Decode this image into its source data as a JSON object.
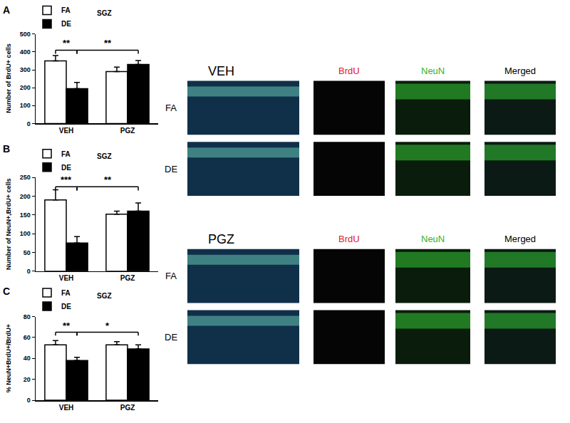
{
  "chart_data": [
    {
      "type": "bar",
      "panel_label": "A",
      "title": "SGZ",
      "y_label": "Number of BrdU+ cells",
      "categories": [
        "VEH",
        "PGZ"
      ],
      "series": [
        {
          "name": "FA",
          "color": "#ffffff",
          "values": [
            350,
            290
          ],
          "errors": [
            30,
            25
          ]
        },
        {
          "name": "DE",
          "color": "#000000",
          "values": [
            195,
            330
          ],
          "errors": [
            35,
            22
          ]
        }
      ],
      "ylim": [
        0,
        500
      ],
      "yticks": [
        0,
        100,
        200,
        300,
        400,
        500
      ],
      "grid": false,
      "legend": "upper left",
      "significance": [
        {
          "from": [
            "VEH",
            "FA"
          ],
          "to": [
            "VEH",
            "DE"
          ],
          "y": 410,
          "label": "**"
        },
        {
          "from": [
            "VEH",
            "DE"
          ],
          "to": [
            "PGZ",
            "DE"
          ],
          "y": 410,
          "label": "**"
        }
      ]
    },
    {
      "type": "bar",
      "panel_label": "B",
      "title": "SGZ",
      "y_label": "Number of NeuN+,BrdU+ cells",
      "categories": [
        "VEH",
        "PGZ"
      ],
      "series": [
        {
          "name": "FA",
          "color": "#ffffff",
          "values": [
            190,
            152
          ],
          "errors": [
            27,
            8
          ]
        },
        {
          "name": "DE",
          "color": "#000000",
          "values": [
            75,
            160
          ],
          "errors": [
            17,
            22
          ]
        }
      ],
      "ylim": [
        0,
        250
      ],
      "yticks": [
        0,
        50,
        100,
        150,
        200,
        250
      ],
      "grid": false,
      "legend": "upper left",
      "significance": [
        {
          "from": [
            "VEH",
            "FA"
          ],
          "to": [
            "VEH",
            "DE"
          ],
          "y": 225,
          "label": "***"
        },
        {
          "from": [
            "VEH",
            "DE"
          ],
          "to": [
            "PGZ",
            "DE"
          ],
          "y": 225,
          "label": "**"
        }
      ]
    },
    {
      "type": "bar",
      "panel_label": "C",
      "title": "SGZ",
      "y_label": "% NeuN+BrdU+/BrdU+",
      "categories": [
        "VEH",
        "PGZ"
      ],
      "series": [
        {
          "name": "FA",
          "color": "#ffffff",
          "values": [
            53,
            53
          ],
          "errors": [
            4,
            3
          ]
        },
        {
          "name": "DE",
          "color": "#000000",
          "values": [
            38,
            49
          ],
          "errors": [
            3,
            4
          ]
        }
      ],
      "ylim": [
        0,
        80
      ],
      "yticks": [
        0,
        20,
        40,
        60,
        80
      ],
      "grid": false,
      "legend": "upper left",
      "significance": [
        {
          "from": [
            "VEH",
            "FA"
          ],
          "to": [
            "VEH",
            "DE"
          ],
          "y": 65,
          "label": "**"
        },
        {
          "from": [
            "VEH",
            "DE"
          ],
          "to": [
            "PGZ",
            "DE"
          ],
          "y": 65,
          "label": "*"
        }
      ]
    }
  ],
  "image_panel": {
    "groups": [
      {
        "title": "VEH",
        "rows": [
          "FA",
          "DE"
        ],
        "columns": [
          "BrdU",
          "NeuN",
          "Merged"
        ]
      },
      {
        "title": "PGZ",
        "rows": [
          "FA",
          "DE"
        ],
        "columns": [
          "BrdU",
          "NeuN",
          "Merged"
        ]
      }
    ]
  }
}
